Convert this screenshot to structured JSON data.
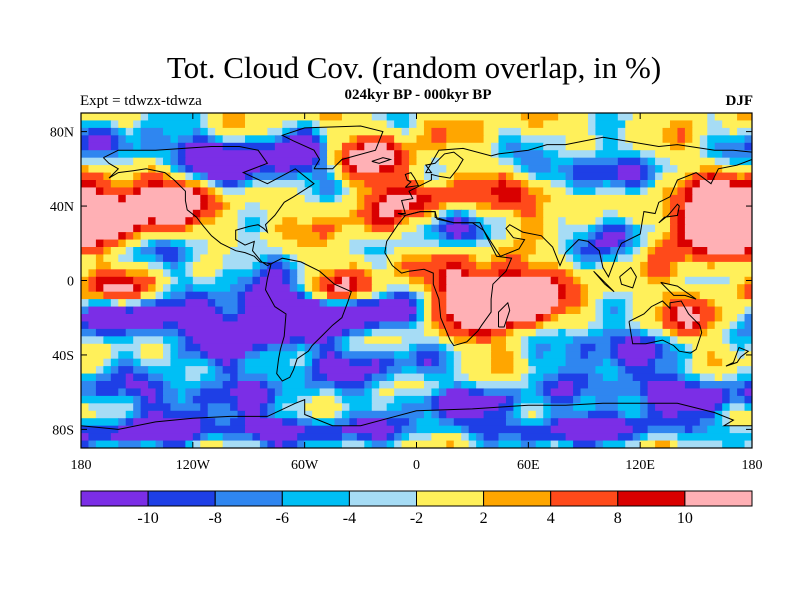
{
  "chart_data": {
    "type": "heatmap",
    "title": "Tot. Cloud Cov. (random overlap, in %)",
    "subtitle": "024kyr BP - 000kyr BP",
    "experiment_label": "Expt = tdwzx-tdwza",
    "season_label": "DJF",
    "x_ticks": [
      "180",
      "120W",
      "60W",
      "0",
      "60E",
      "120E",
      "180"
    ],
    "x_tick_values": [
      -180,
      -120,
      -60,
      0,
      60,
      120,
      180
    ],
    "y_ticks": [
      "80N",
      "40N",
      "0",
      "40S",
      "80S"
    ],
    "y_tick_values": [
      80,
      40,
      0,
      -40,
      -80
    ],
    "xlim": [
      -180,
      180
    ],
    "ylim": [
      -90,
      90
    ],
    "colorbar": {
      "levels": [
        "-10",
        "-8",
        "-6",
        "-4",
        "-2",
        "2",
        "4",
        "8",
        "10"
      ],
      "level_values": [
        -10,
        -8,
        -6,
        -4,
        -2,
        2,
        4,
        8,
        10
      ],
      "colors": [
        "#7b2ee6",
        "#1e3fe6",
        "#2f86f0",
        "#00bff5",
        "#a6dcf5",
        "#fff05a",
        "#ffa600",
        "#ff4a1a",
        "#d90000",
        "#ffb0b5"
      ]
    }
  }
}
